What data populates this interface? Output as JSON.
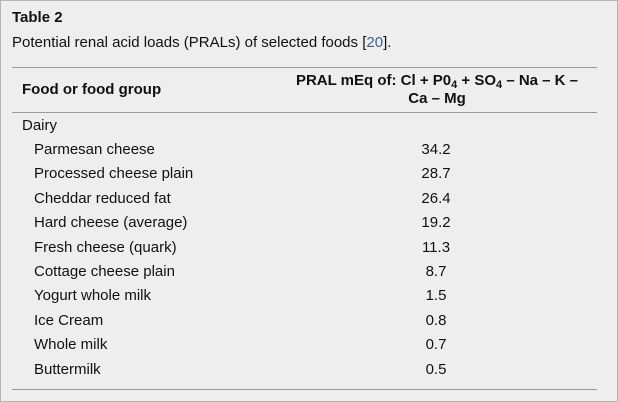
{
  "table": {
    "title": "Table 2",
    "caption_text": "Potential renal acid loads (PRALs) of selected foods [",
    "caption_ref": "20",
    "caption_end": "].",
    "header": {
      "food_col": "Food or food group",
      "pral_prefix": "PRAL mEq of: Cl + P0",
      "sub1": "4",
      "pral_mid": " + SO",
      "sub2": "4",
      "pral_suffix": " – Na – K –",
      "pral_line2": "Ca – Mg"
    },
    "group": "Dairy",
    "rows": [
      {
        "food": "Parmesan cheese",
        "value": "34.2"
      },
      {
        "food": "Processed cheese plain",
        "value": "28.7"
      },
      {
        "food": "Cheddar reduced fat",
        "value": "26.4"
      },
      {
        "food": "Hard cheese (average)",
        "value": "19.2"
      },
      {
        "food": "Fresh cheese (quark)",
        "value": "11.3"
      },
      {
        "food": "Cottage cheese plain",
        "value": "8.7"
      },
      {
        "food": "Yogurt whole milk",
        "value": "1.5"
      },
      {
        "food": "Ice Cream",
        "value": "0.8"
      },
      {
        "food": "Whole milk",
        "value": "0.7"
      },
      {
        "food": "Buttermilk",
        "value": "0.5"
      }
    ]
  }
}
